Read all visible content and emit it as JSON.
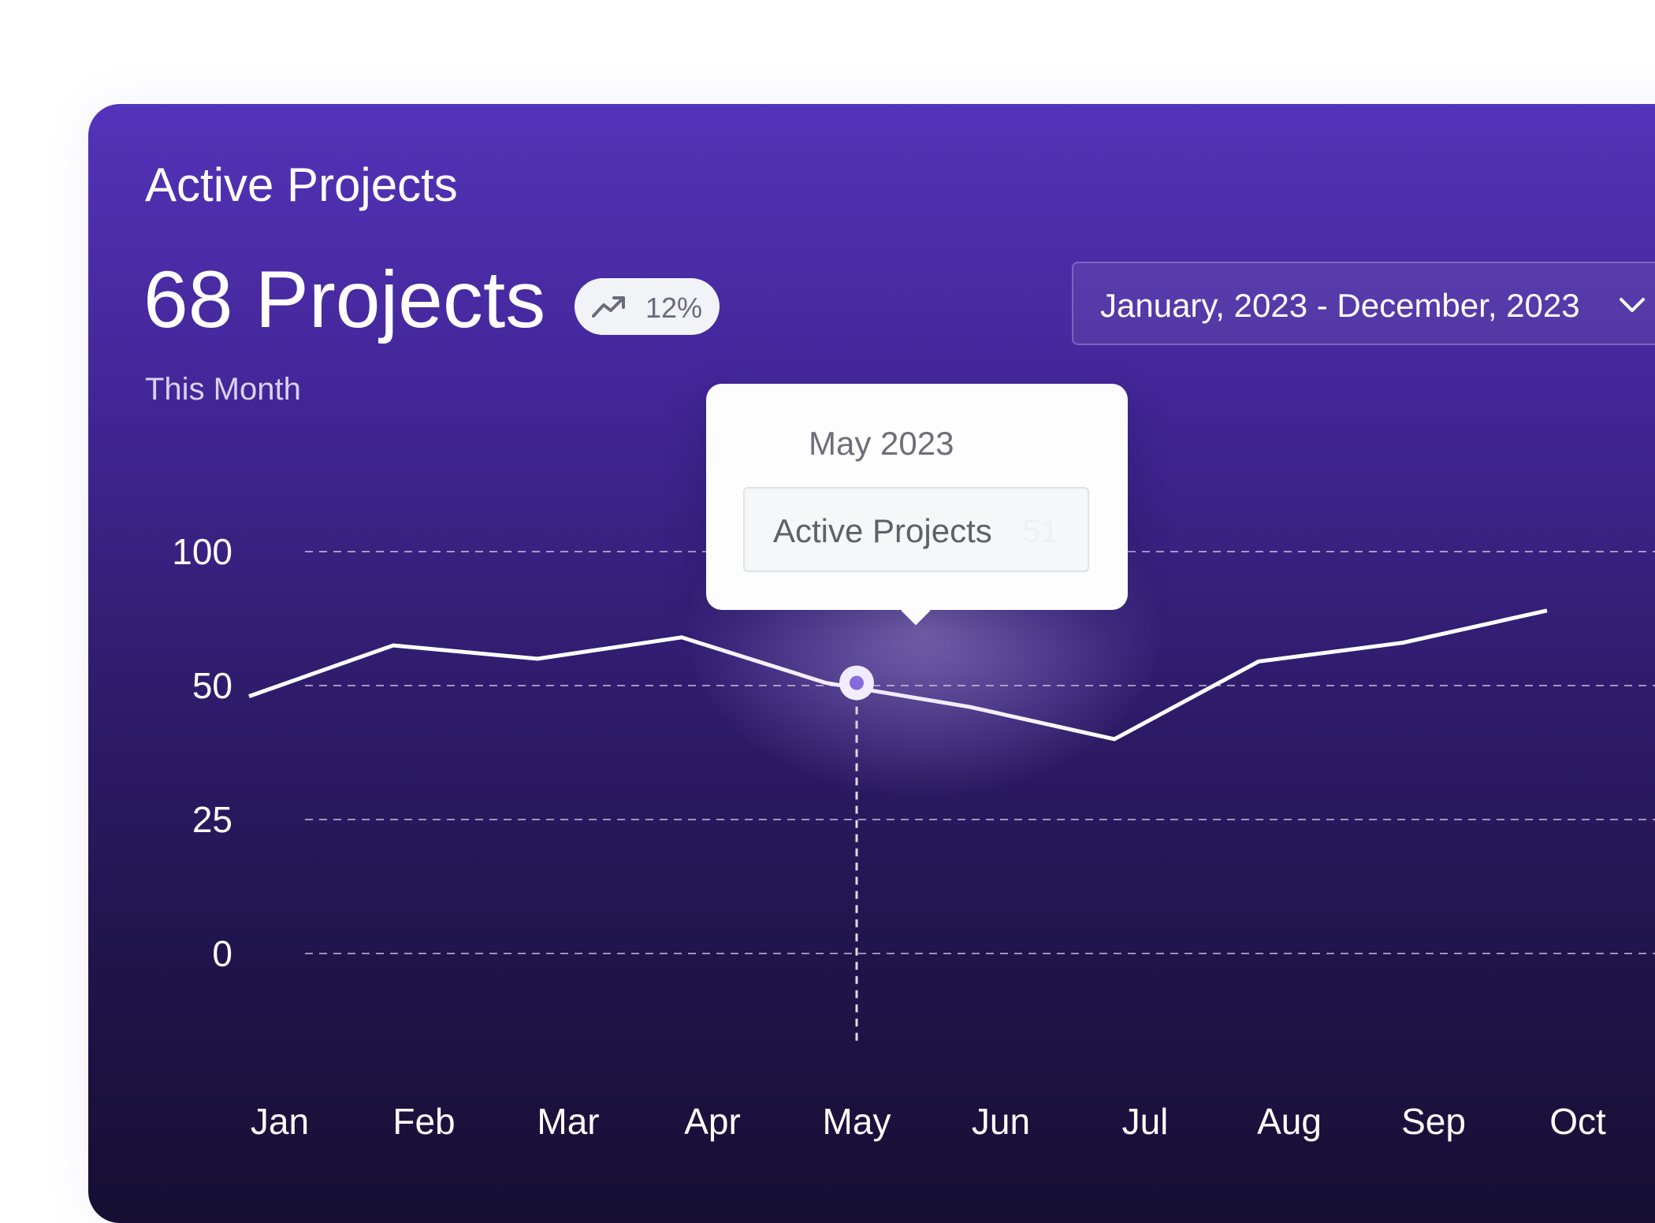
{
  "card": {
    "title": "Active Projects",
    "big_value": "68 Projects",
    "period": "This Month",
    "trend": {
      "icon": "trending-up-icon",
      "percent": "12%"
    },
    "date_range": {
      "label": "January, 2023 - December, 2023",
      "icon": "chevron-down-icon"
    }
  },
  "tooltip": {
    "date": "May 2023",
    "series_label": "Active Projects",
    "value": "51"
  },
  "colors": {
    "card_top": "#5333b8",
    "card_bottom": "#160f33",
    "line": "#ffffff",
    "marker": "#6d4fd4",
    "badge_bg": "#f2f3f7"
  },
  "chart_data": {
    "type": "line",
    "categories": [
      "Jan",
      "Feb",
      "Mar",
      "Apr",
      "May",
      "Jun",
      "Jul",
      "Aug",
      "Sep",
      "Oct"
    ],
    "y_ticks": [
      "0",
      "25",
      "50",
      "100"
    ],
    "series": [
      {
        "values": [
          48,
          65,
          60,
          68,
          51,
          46,
          40,
          59,
          66,
          78
        ]
      }
    ],
    "highlighted_category": "May",
    "grid": true,
    "legend": "none"
  }
}
